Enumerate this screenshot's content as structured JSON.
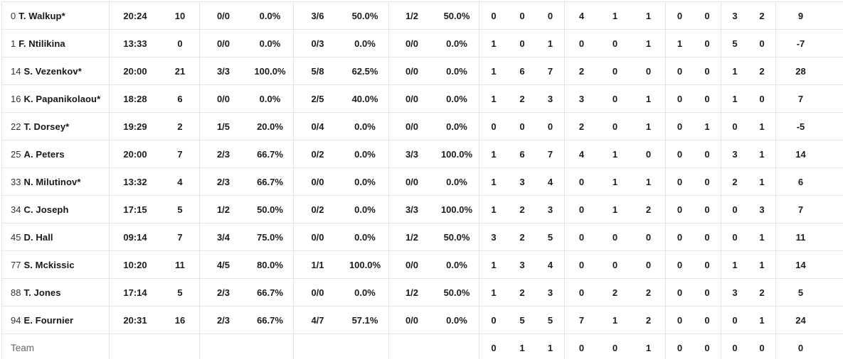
{
  "table": {
    "rows": [
      {
        "is_team": false,
        "number": "0",
        "name": "T. Walkup*",
        "stats": {
          "min": "20:24",
          "pts": "10",
          "fg2": "0/0",
          "fg2pct": "0.0%",
          "fg3": "3/6",
          "fg3pct": "50.0%",
          "ft": "1/2",
          "ftpct": "50.0%",
          "reb_off": "0",
          "reb_def": "0",
          "reb_tot": "0",
          "ast": "4",
          "stl": "1",
          "tov": "1",
          "blk_for": "0",
          "blk_against": "0",
          "fouls_committed": "3",
          "fouls_drawn": "2",
          "pir": "9"
        }
      },
      {
        "is_team": false,
        "number": "1",
        "name": "F. Ntilikina",
        "stats": {
          "min": "13:33",
          "pts": "0",
          "fg2": "0/0",
          "fg2pct": "0.0%",
          "fg3": "0/3",
          "fg3pct": "0.0%",
          "ft": "0/0",
          "ftpct": "0.0%",
          "reb_off": "1",
          "reb_def": "0",
          "reb_tot": "1",
          "ast": "0",
          "stl": "0",
          "tov": "1",
          "blk_for": "1",
          "blk_against": "0",
          "fouls_committed": "5",
          "fouls_drawn": "0",
          "pir": "-7"
        }
      },
      {
        "is_team": false,
        "number": "14",
        "name": "S. Vezenkov*",
        "stats": {
          "min": "20:00",
          "pts": "21",
          "fg2": "3/3",
          "fg2pct": "100.0%",
          "fg3": "5/8",
          "fg3pct": "62.5%",
          "ft": "0/0",
          "ftpct": "0.0%",
          "reb_off": "1",
          "reb_def": "6",
          "reb_tot": "7",
          "ast": "2",
          "stl": "0",
          "tov": "0",
          "blk_for": "0",
          "blk_against": "0",
          "fouls_committed": "1",
          "fouls_drawn": "2",
          "pir": "28"
        }
      },
      {
        "is_team": false,
        "number": "16",
        "name": "K. Papanikolaou*",
        "stats": {
          "min": "18:28",
          "pts": "6",
          "fg2": "0/0",
          "fg2pct": "0.0%",
          "fg3": "2/5",
          "fg3pct": "40.0%",
          "ft": "0/0",
          "ftpct": "0.0%",
          "reb_off": "1",
          "reb_def": "2",
          "reb_tot": "3",
          "ast": "3",
          "stl": "0",
          "tov": "1",
          "blk_for": "0",
          "blk_against": "0",
          "fouls_committed": "1",
          "fouls_drawn": "0",
          "pir": "7"
        }
      },
      {
        "is_team": false,
        "number": "22",
        "name": "T. Dorsey*",
        "stats": {
          "min": "19:29",
          "pts": "2",
          "fg2": "1/5",
          "fg2pct": "20.0%",
          "fg3": "0/4",
          "fg3pct": "0.0%",
          "ft": "0/0",
          "ftpct": "0.0%",
          "reb_off": "0",
          "reb_def": "0",
          "reb_tot": "0",
          "ast": "2",
          "stl": "0",
          "tov": "1",
          "blk_for": "0",
          "blk_against": "1",
          "fouls_committed": "0",
          "fouls_drawn": "1",
          "pir": "-5"
        }
      },
      {
        "is_team": false,
        "number": "25",
        "name": "A. Peters",
        "stats": {
          "min": "20:00",
          "pts": "7",
          "fg2": "2/3",
          "fg2pct": "66.7%",
          "fg3": "0/2",
          "fg3pct": "0.0%",
          "ft": "3/3",
          "ftpct": "100.0%",
          "reb_off": "1",
          "reb_def": "6",
          "reb_tot": "7",
          "ast": "4",
          "stl": "1",
          "tov": "0",
          "blk_for": "0",
          "blk_against": "0",
          "fouls_committed": "3",
          "fouls_drawn": "1",
          "pir": "14"
        }
      },
      {
        "is_team": false,
        "number": "33",
        "name": "N. Milutinov*",
        "stats": {
          "min": "13:32",
          "pts": "4",
          "fg2": "2/3",
          "fg2pct": "66.7%",
          "fg3": "0/0",
          "fg3pct": "0.0%",
          "ft": "0/0",
          "ftpct": "0.0%",
          "reb_off": "1",
          "reb_def": "3",
          "reb_tot": "4",
          "ast": "0",
          "stl": "1",
          "tov": "1",
          "blk_for": "0",
          "blk_against": "0",
          "fouls_committed": "2",
          "fouls_drawn": "1",
          "pir": "6"
        }
      },
      {
        "is_team": false,
        "number": "34",
        "name": "C. Joseph",
        "stats": {
          "min": "17:15",
          "pts": "5",
          "fg2": "1/2",
          "fg2pct": "50.0%",
          "fg3": "0/2",
          "fg3pct": "0.0%",
          "ft": "3/3",
          "ftpct": "100.0%",
          "reb_off": "1",
          "reb_def": "2",
          "reb_tot": "3",
          "ast": "0",
          "stl": "1",
          "tov": "2",
          "blk_for": "0",
          "blk_against": "0",
          "fouls_committed": "0",
          "fouls_drawn": "3",
          "pir": "7"
        }
      },
      {
        "is_team": false,
        "number": "45",
        "name": "D. Hall",
        "stats": {
          "min": "09:14",
          "pts": "7",
          "fg2": "3/4",
          "fg2pct": "75.0%",
          "fg3": "0/0",
          "fg3pct": "0.0%",
          "ft": "1/2",
          "ftpct": "50.0%",
          "reb_off": "3",
          "reb_def": "2",
          "reb_tot": "5",
          "ast": "0",
          "stl": "0",
          "tov": "0",
          "blk_for": "0",
          "blk_against": "0",
          "fouls_committed": "0",
          "fouls_drawn": "1",
          "pir": "11"
        }
      },
      {
        "is_team": false,
        "number": "77",
        "name": "S. Mckissic",
        "stats": {
          "min": "10:20",
          "pts": "11",
          "fg2": "4/5",
          "fg2pct": "80.0%",
          "fg3": "1/1",
          "fg3pct": "100.0%",
          "ft": "0/0",
          "ftpct": "0.0%",
          "reb_off": "1",
          "reb_def": "3",
          "reb_tot": "4",
          "ast": "0",
          "stl": "0",
          "tov": "0",
          "blk_for": "0",
          "blk_against": "0",
          "fouls_committed": "1",
          "fouls_drawn": "1",
          "pir": "14"
        }
      },
      {
        "is_team": false,
        "number": "88",
        "name": "T. Jones",
        "stats": {
          "min": "17:14",
          "pts": "5",
          "fg2": "2/3",
          "fg2pct": "66.7%",
          "fg3": "0/0",
          "fg3pct": "0.0%",
          "ft": "1/2",
          "ftpct": "50.0%",
          "reb_off": "1",
          "reb_def": "2",
          "reb_tot": "3",
          "ast": "0",
          "stl": "2",
          "tov": "2",
          "blk_for": "0",
          "blk_against": "0",
          "fouls_committed": "3",
          "fouls_drawn": "2",
          "pir": "5"
        }
      },
      {
        "is_team": false,
        "number": "94",
        "name": "E. Fournier",
        "stats": {
          "min": "20:31",
          "pts": "16",
          "fg2": "2/3",
          "fg2pct": "66.7%",
          "fg3": "4/7",
          "fg3pct": "57.1%",
          "ft": "0/0",
          "ftpct": "0.0%",
          "reb_off": "0",
          "reb_def": "5",
          "reb_tot": "5",
          "ast": "7",
          "stl": "1",
          "tov": "2",
          "blk_for": "0",
          "blk_against": "0",
          "fouls_committed": "0",
          "fouls_drawn": "1",
          "pir": "24"
        }
      },
      {
        "is_team": true,
        "number": "",
        "name": "Team",
        "stats": {
          "min": "",
          "pts": "",
          "fg2": "",
          "fg2pct": "",
          "fg3": "",
          "fg3pct": "",
          "ft": "",
          "ftpct": "",
          "reb_off": "0",
          "reb_def": "1",
          "reb_tot": "1",
          "ast": "0",
          "stl": "0",
          "tov": "1",
          "blk_for": "0",
          "blk_against": "0",
          "fouls_committed": "0",
          "fouls_drawn": "0",
          "pir": "0"
        }
      }
    ]
  }
}
